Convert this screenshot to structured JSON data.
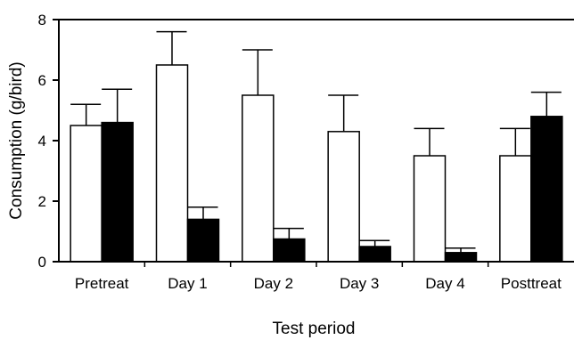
{
  "chart_data": {
    "type": "bar",
    "title": "",
    "xlabel": "Test period",
    "ylabel": "Consumption (g/bird)",
    "categories": [
      "Pretreat",
      "Day 1",
      "Day 2",
      "Day 3",
      "Day 4",
      "Posttreat"
    ],
    "ylim": [
      0,
      8
    ],
    "yticks": [
      0,
      2,
      4,
      6,
      8
    ],
    "grid": false,
    "legend": "none",
    "error_bars": "upper only",
    "series": [
      {
        "fill": "#ffffff",
        "values": [
          4.5,
          6.5,
          5.5,
          4.3,
          3.5,
          3.5
        ],
        "error_upper": [
          5.2,
          7.6,
          7.0,
          5.5,
          4.4,
          4.4
        ]
      },
      {
        "fill": "#000000",
        "values": [
          4.6,
          1.4,
          0.75,
          0.5,
          0.3,
          4.8
        ],
        "error_upper": [
          5.7,
          1.8,
          1.1,
          0.7,
          0.45,
          5.6
        ]
      }
    ]
  }
}
